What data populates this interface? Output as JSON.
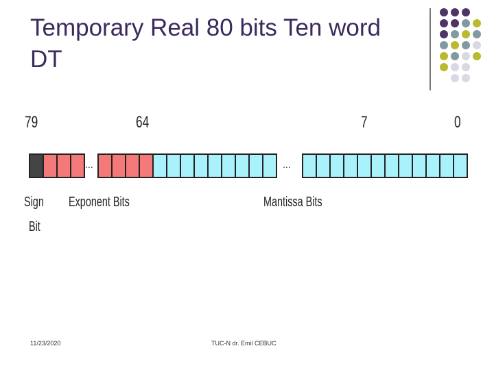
{
  "slide": {
    "title": "Temporary Real 80 bits Ten word DT",
    "footer_date": "11/23/2020",
    "footer_author": "TUC-N dr. Emil CEBUC"
  },
  "diagram": {
    "bit_positions": [
      "79",
      "64",
      "7",
      "0"
    ],
    "label_sign_line1": "Sign",
    "label_sign_line2": "Bit",
    "label_exponent": "Exponent Bits",
    "label_mantissa": "Mantissa Bits",
    "ellipsis_left": "...",
    "ellipsis_right": "...",
    "colors": {
      "sign": "#444444",
      "exponent": "#f47a7a",
      "mantissa": "#a9f2fb",
      "border": "#222222"
    }
  },
  "decoration": {
    "colors": [
      "#4d3566",
      "#7f9aa0",
      "#b9bb2c",
      "#d9d9e3"
    ]
  }
}
